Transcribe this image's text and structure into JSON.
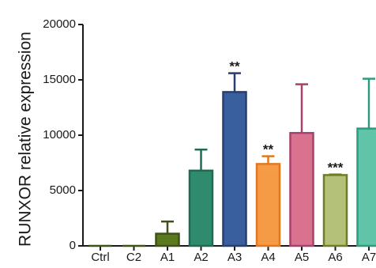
{
  "chart_data": {
    "type": "bar",
    "title": "",
    "xlabel": "",
    "ylabel": "RUNXOR relative expression",
    "ylim": [
      0,
      20000
    ],
    "yticks": [
      0,
      5000,
      10000,
      15000,
      20000
    ],
    "ytick_labels": [
      "0",
      "5000",
      "10000",
      "15000",
      "20000"
    ],
    "grid": false,
    "legend": "none",
    "categories": [
      "Ctrl",
      "C2",
      "A1",
      "A2",
      "A3",
      "A4",
      "A5",
      "A6",
      "A7"
    ],
    "values": [
      0,
      0,
      1100,
      6800,
      13900,
      7400,
      10200,
      6400,
      10600
    ],
    "error_upper": [
      0,
      0,
      2200,
      8700,
      15600,
      8100,
      14600,
      6450,
      15100
    ],
    "significance": [
      "",
      "",
      "",
      "",
      "**",
      "**",
      "",
      "***",
      ""
    ],
    "fill_colors": [
      "#ffffff",
      "#ffffff",
      "#5b7a1e",
      "#2e8b6e",
      "#3a5f9e",
      "#f59a45",
      "#d9728f",
      "#b4c178",
      "#5fc4a8"
    ],
    "edge_colors": [
      "#3d5214",
      "#3d5214",
      "#3d5214",
      "#1e6a52",
      "#243f70",
      "#e07820",
      "#a8406a",
      "#6e7d26",
      "#2e9a80"
    ]
  }
}
